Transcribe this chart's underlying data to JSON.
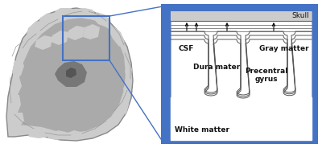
{
  "bg_color": "#4472C4",
  "white_box_color": "#FFFFFF",
  "skull_fill": "#CCCCCC",
  "skull_line": "#888888",
  "layer_line_color": "#888888",
  "gyrus_line_color": "#333333",
  "text_color": "#111111",
  "brain_light": "#CCCCCC",
  "brain_mid": "#AAAAAA",
  "brain_dark": "#777777",
  "brain_darkest": "#555555",
  "brain_outline": "#888888",
  "highlight_color": "#4472C4",
  "arrow_color": "#111111",
  "labels": {
    "skull": "Skull",
    "csf": "CSF",
    "gray_matter": "Gray matter",
    "dura_mater": "Dura mater",
    "precentral": "Precentral\ngyrus",
    "white_matter": "White matter"
  },
  "font_size": 6.5
}
